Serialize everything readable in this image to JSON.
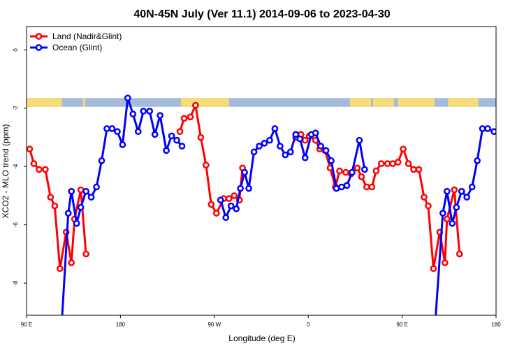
{
  "chart_data": {
    "type": "line",
    "title": "40N-45N July (Ver 11.1)   2014-09-06 to 2023-04-30",
    "xlabel": "Longitude (deg E)",
    "ylabel": "XCO2 - MLO trend (ppm)",
    "xlim": [
      90,
      540
    ],
    "ylim": [
      -9.1,
      0.8
    ],
    "x_ticks": [
      {
        "value": 90,
        "label": "90 E"
      },
      {
        "value": 180,
        "label": "180"
      },
      {
        "value": 270,
        "label": "90 W"
      },
      {
        "value": 360,
        "label": "0"
      },
      {
        "value": 450,
        "label": "90 E"
      },
      {
        "value": 540,
        "label": "180"
      }
    ],
    "y_ticks": [
      {
        "value": 0,
        "label": "0"
      },
      {
        "value": -2,
        "label": "-2"
      },
      {
        "value": -4,
        "label": "-4"
      },
      {
        "value": -6,
        "label": "-6"
      },
      {
        "value": -8,
        "label": "-8"
      }
    ],
    "legend_position": "top-left",
    "grid": false,
    "land_ocean_band": {
      "y_top": -1.65,
      "y_bottom": -1.95,
      "land_color": "#f8dc78",
      "ocean_color": "#a4bcdc",
      "land_ranges": [
        [
          90,
          124
        ],
        [
          144,
          146
        ],
        [
          238,
          284
        ],
        [
          400,
          420
        ],
        [
          422,
          442
        ],
        [
          446,
          481
        ],
        [
          494,
          523
        ]
      ]
    },
    "series": [
      {
        "name": "Land (Nadir&Glint)",
        "color": "#ff0000",
        "segments": [
          [
            [
              93,
              -3.4
            ],
            [
              97,
              -3.9
            ],
            [
              102,
              -4.1
            ],
            [
              108,
              -4.1
            ],
            [
              113,
              -5.05
            ],
            [
              117,
              -5.35
            ],
            [
              122,
              -7.5
            ],
            [
              128,
              -6.25
            ],
            [
              133,
              -7.3
            ],
            [
              136,
              -5.8
            ],
            [
              142,
              -4.8
            ],
            [
              147,
              -7.0
            ]
          ],
          [
            [
              237,
              -2.8
            ],
            [
              241,
              -2.35
            ],
            [
              247,
              -2.3
            ],
            [
              252,
              -1.9
            ],
            [
              257,
              -3.0
            ],
            [
              262,
              -3.95
            ],
            [
              267,
              -5.3
            ],
            [
              272,
              -5.6
            ],
            [
              279,
              -5.1
            ],
            [
              284,
              -5.1
            ],
            [
              289,
              -5.0
            ],
            [
              294,
              -5.15
            ],
            [
              297,
              -4.05
            ]
          ],
          [
            [
              348,
              -3.0
            ],
            [
              353,
              -2.9
            ],
            [
              357,
              -3.1
            ],
            [
              361,
              -2.95
            ],
            [
              367,
              -3.1
            ],
            [
              371,
              -3.4
            ],
            [
              376,
              -3.45
            ],
            [
              381,
              -4.05
            ],
            [
              386,
              -4.7
            ],
            [
              390,
              -4.15
            ],
            [
              396,
              -4.2
            ],
            [
              401,
              -4.25
            ],
            [
              407,
              -4.05
            ],
            [
              411,
              -4.35
            ],
            [
              416,
              -4.7
            ],
            [
              421,
              -4.7
            ],
            [
              425,
              -4.15
            ],
            [
              430,
              -3.9
            ],
            [
              436,
              -3.9
            ],
            [
              441,
              -3.9
            ],
            [
              446,
              -3.85
            ],
            [
              451,
              -3.4
            ],
            [
              456,
              -3.9
            ],
            [
              461,
              -4.1
            ],
            [
              466,
              -4.1
            ],
            [
              471,
              -5.05
            ],
            [
              475,
              -5.35
            ],
            [
              480,
              -7.5
            ],
            [
              486,
              -6.25
            ],
            [
              491,
              -7.3
            ],
            [
              493,
              -5.8
            ],
            [
              500,
              -4.8
            ],
            [
              505,
              -7.0
            ]
          ]
        ]
      },
      {
        "name": "Ocean (Glint)",
        "color": "#0000ff",
        "segments": [
          [
            [
              124,
              -9.2
            ],
            [
              130,
              -5.6
            ],
            [
              133,
              -4.85
            ],
            [
              138,
              -5.95
            ],
            [
              142,
              -5.4
            ],
            [
              147,
              -4.85
            ],
            [
              152,
              -5.05
            ],
            [
              157,
              -4.7
            ],
            [
              162,
              -3.8
            ],
            [
              167,
              -2.7
            ],
            [
              172,
              -2.7
            ],
            [
              177,
              -2.8
            ],
            [
              182,
              -3.25
            ],
            [
              187,
              -1.65
            ],
            [
              192,
              -2.2
            ],
            [
              197,
              -2.8
            ],
            [
              202,
              -2.1
            ],
            [
              208,
              -2.1
            ],
            [
              213,
              -2.9
            ],
            [
              218,
              -2.25
            ],
            [
              224,
              -3.45
            ],
            [
              229,
              -2.95
            ],
            [
              234,
              -3.1
            ],
            [
              239,
              -3.3
            ]
          ],
          [
            [
              276,
              -5.15
            ],
            [
              281,
              -5.75
            ],
            [
              286,
              -5.35
            ],
            [
              291,
              -5.45
            ],
            [
              295,
              -4.75
            ],
            [
              299,
              -4.2
            ],
            [
              303,
              -4.75
            ],
            [
              308,
              -3.5
            ],
            [
              313,
              -3.3
            ],
            [
              318,
              -3.2
            ],
            [
              323,
              -3.1
            ],
            [
              328,
              -2.7
            ],
            [
              333,
              -3.3
            ],
            [
              338,
              -3.6
            ],
            [
              343,
              -3.5
            ],
            [
              348,
              -2.9
            ],
            [
              352,
              -3.05
            ],
            [
              357,
              -3.7
            ],
            [
              363,
              -2.9
            ],
            [
              367,
              -2.85
            ],
            [
              372,
              -3.3
            ],
            [
              377,
              -3.45
            ],
            [
              382,
              -3.8
            ],
            [
              387,
              -4.75
            ],
            [
              392,
              -4.7
            ],
            [
              397,
              -4.65
            ],
            [
              402,
              -4.2
            ],
            [
              409,
              -3.1
            ],
            [
              414,
              -4.1
            ]
          ],
          [
            [
              482,
              -9.2
            ],
            [
              489,
              -5.6
            ],
            [
              493,
              -4.85
            ],
            [
              498,
              -5.95
            ],
            [
              502,
              -5.4
            ],
            [
              507,
              -4.85
            ],
            [
              512,
              -5.05
            ],
            [
              517,
              -4.7
            ],
            [
              522,
              -3.8
            ],
            [
              527,
              -2.7
            ],
            [
              532,
              -2.7
            ],
            [
              538,
              -2.8
            ]
          ]
        ]
      }
    ]
  }
}
